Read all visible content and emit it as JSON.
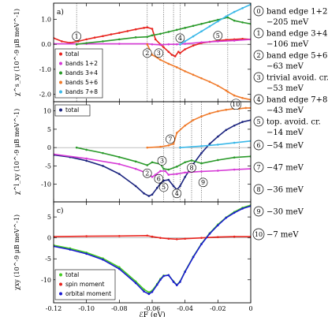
{
  "figure": {
    "xlabel": "ℰF (eV)",
    "x_tick_labels": [
      "-0.12",
      "-0.10",
      "-0.08",
      "-0.06",
      "-0.04",
      "-0.02",
      "0"
    ]
  },
  "chart_data": [
    {
      "panel": "a)",
      "type": "line",
      "ylabel": "χ^s_xy (10^-9 μB meV^-1)",
      "xlim": [
        -0.12,
        0.0
      ],
      "ylim": [
        -2.3,
        1.65
      ],
      "y_ticks": [
        "1.0",
        "0.0",
        "-1.0",
        "-2.0"
      ],
      "y_tick_values": [
        1.0,
        0.0,
        -1.0,
        -2.0
      ],
      "legend_position": "lower-left",
      "series": [
        {
          "name": "total",
          "color": "#e8231d",
          "x": [
            -0.12,
            -0.115,
            -0.11,
            -0.105,
            -0.1,
            -0.095,
            -0.09,
            -0.085,
            -0.08,
            -0.075,
            -0.07,
            -0.065,
            -0.063,
            -0.06,
            -0.058,
            -0.055,
            -0.053,
            -0.05,
            -0.048,
            -0.046,
            -0.044,
            -0.043,
            -0.04,
            -0.035,
            -0.03,
            -0.025,
            -0.02,
            -0.015,
            -0.01,
            -0.005,
            0.0
          ],
          "y": [
            0.25,
            0.12,
            0.06,
            0.12,
            0.2,
            0.27,
            0.33,
            0.4,
            0.46,
            0.53,
            0.6,
            0.66,
            0.68,
            0.62,
            0.2,
            0.0,
            -0.12,
            -0.3,
            -0.42,
            -0.48,
            -0.3,
            -0.35,
            -0.2,
            -0.05,
            0.05,
            0.1,
            0.15,
            0.18,
            0.2,
            0.22,
            0.2
          ]
        },
        {
          "name": "bands 1+2",
          "color": "#d63ad6",
          "x": [
            -0.12,
            -0.1,
            -0.08,
            -0.063,
            -0.06,
            -0.055,
            -0.05,
            -0.045,
            -0.04,
            -0.03,
            -0.02,
            -0.01,
            0.0
          ],
          "y": [
            0.02,
            0.02,
            0.02,
            0.02,
            0.0,
            -0.02,
            0.0,
            0.0,
            0.02,
            0.08,
            0.12,
            0.15,
            0.2
          ]
        },
        {
          "name": "bands 3+4",
          "color": "#2a9a2a",
          "x": [
            -0.106,
            -0.1,
            -0.09,
            -0.08,
            -0.07,
            -0.063,
            -0.06,
            -0.055,
            -0.05,
            -0.045,
            -0.04,
            -0.035,
            -0.03,
            -0.025,
            -0.02,
            -0.014,
            -0.01,
            -0.005,
            0.0
          ],
          "y": [
            0.0,
            0.05,
            0.12,
            0.2,
            0.28,
            0.3,
            0.36,
            0.42,
            0.5,
            0.58,
            0.66,
            0.74,
            0.82,
            0.9,
            0.98,
            1.08,
            0.95,
            0.88,
            0.82
          ]
        },
        {
          "name": "bands 5+6",
          "color": "#f07a2a",
          "x": [
            -0.063,
            -0.06,
            -0.055,
            -0.05,
            -0.045,
            -0.04,
            -0.035,
            -0.03,
            -0.025,
            -0.02,
            -0.015,
            -0.014,
            -0.01,
            -0.005,
            0.0
          ],
          "y": [
            0.0,
            -0.42,
            -0.62,
            -0.78,
            -0.92,
            -1.08,
            -1.22,
            -1.36,
            -1.5,
            -1.66,
            -1.85,
            -1.9,
            -2.05,
            -2.15,
            -2.22
          ]
        },
        {
          "name": "bands 7+8",
          "color": "#3ab8e8",
          "x": [
            -0.043,
            -0.04,
            -0.035,
            -0.03,
            -0.025,
            -0.02,
            -0.015,
            -0.01,
            -0.005,
            0.0
          ],
          "y": [
            0.0,
            0.12,
            0.32,
            0.52,
            0.72,
            0.92,
            1.12,
            1.3,
            1.45,
            1.6
          ]
        }
      ],
      "vlines": [
        -0.106,
        -0.063,
        -0.053,
        -0.047,
        -0.043,
        -0.014
      ],
      "markers": [
        {
          "label": "1",
          "x": -0.106,
          "y": 0.32
        },
        {
          "label": "2",
          "x": -0.063,
          "y": -0.35
        },
        {
          "label": "3",
          "x": -0.056,
          "y": -0.35
        },
        {
          "label": "4",
          "x": -0.043,
          "y": 0.25
        },
        {
          "label": "5",
          "x": -0.02,
          "y": 0.35
        }
      ]
    },
    {
      "panel": "b)",
      "type": "line",
      "ylabel": "χ^l_xy (10^-9 μB meV^-1)",
      "xlim": [
        -0.12,
        0.0
      ],
      "ylim": [
        -14.8,
        12.5
      ],
      "y_ticks": [
        "10",
        "5",
        "0",
        "-5",
        "-10"
      ],
      "y_tick_values": [
        10,
        5,
        0,
        -5,
        -10
      ],
      "legend_position": "top-left",
      "series": [
        {
          "name": "total",
          "color": "#1a237e",
          "x": [
            -0.12,
            -0.11,
            -0.1,
            -0.09,
            -0.08,
            -0.07,
            -0.065,
            -0.062,
            -0.06,
            -0.057,
            -0.055,
            -0.053,
            -0.05,
            -0.047,
            -0.045,
            -0.043,
            -0.04,
            -0.035,
            -0.03,
            -0.025,
            -0.02,
            -0.015,
            -0.01,
            -0.005,
            0.0
          ],
          "y": [
            -2.0,
            -2.6,
            -3.6,
            -5.0,
            -7.2,
            -10.5,
            -12.5,
            -13.2,
            -12.8,
            -11.0,
            -9.8,
            -9.0,
            -8.8,
            -10.5,
            -11.5,
            -10.5,
            -8.0,
            -4.5,
            -1.5,
            1.0,
            3.0,
            4.8,
            6.0,
            7.0,
            7.5
          ]
        },
        {
          "name": "bands 1+2",
          "color": "#d63ad6",
          "x": [
            -0.12,
            -0.1,
            -0.08,
            -0.07,
            -0.063,
            -0.06,
            -0.058,
            -0.055,
            -0.052,
            -0.05,
            -0.045,
            -0.04,
            -0.03,
            -0.02,
            -0.01,
            0.0
          ],
          "y": [
            -1.8,
            -3.0,
            -4.5,
            -5.8,
            -7.0,
            -8.0,
            -7.4,
            -6.4,
            -6.4,
            -7.4,
            -7.2,
            -6.8,
            -6.5,
            -6.3,
            -6.0,
            -5.8
          ]
        },
        {
          "name": "bands 3+4",
          "color": "#2a9a2a",
          "x": [
            -0.106,
            -0.1,
            -0.09,
            -0.08,
            -0.07,
            -0.063,
            -0.06,
            -0.055,
            -0.053,
            -0.05,
            -0.045,
            -0.04,
            -0.036,
            -0.03,
            -0.02,
            -0.01,
            0.0
          ],
          "y": [
            0.0,
            -0.6,
            -1.5,
            -2.6,
            -3.8,
            -4.8,
            -4.0,
            -4.5,
            -5.8,
            -6.0,
            -5.2,
            -4.0,
            -3.5,
            -4.3,
            -3.4,
            -2.7,
            -2.4
          ]
        },
        {
          "name": "bands 5+6",
          "color": "#f07a2a",
          "x": [
            -0.063,
            -0.055,
            -0.05,
            -0.047,
            -0.045,
            -0.04,
            -0.035,
            -0.03,
            -0.025,
            -0.02,
            -0.015,
            -0.01,
            -0.007,
            -0.003,
            0.0
          ],
          "y": [
            0.0,
            0.2,
            0.6,
            1.0,
            4.0,
            6.0,
            7.5,
            8.5,
            9.3,
            9.9,
            10.3,
            10.6,
            10.6,
            10.8,
            10.8
          ]
        },
        {
          "name": "bands 7+8",
          "color": "#3ab8e8",
          "x": [
            -0.043,
            -0.03,
            -0.02,
            -0.01,
            0.0
          ],
          "y": [
            0.0,
            0.4,
            0.8,
            1.3,
            1.8
          ]
        }
      ],
      "vlines": [
        -0.053,
        -0.047,
        -0.043,
        -0.036,
        -0.03,
        -0.007
      ],
      "markers": [
        {
          "label": "2",
          "x": -0.063,
          "y": -7.0
        },
        {
          "label": "3",
          "x": -0.054,
          "y": -3.6
        },
        {
          "label": "4",
          "x": -0.045,
          "y": -12.5
        },
        {
          "label": "5",
          "x": -0.053,
          "y": -10.8
        },
        {
          "label": "6",
          "x": -0.056,
          "y": -8.5
        },
        {
          "label": "7",
          "x": -0.049,
          "y": 2.3
        },
        {
          "label": "8",
          "x": -0.036,
          "y": -5.5
        },
        {
          "label": "9",
          "x": -0.029,
          "y": -9.5
        },
        {
          "label": "10",
          "x": -0.009,
          "y": 11.8
        }
      ]
    },
    {
      "panel": "c)",
      "type": "line",
      "ylabel": "χxy (10^-9 μB meV^-1)",
      "xlim": [
        -0.12,
        0.0
      ],
      "ylim": [
        -15.5,
        8.6
      ],
      "y_ticks": [
        "5",
        "0",
        "-5",
        "-10"
      ],
      "y_tick_values": [
        5,
        0,
        -5,
        -10
      ],
      "legend_position": "lower-left",
      "series": [
        {
          "name": "total",
          "color": "#44cc22",
          "x": [
            -0.12,
            -0.11,
            -0.1,
            -0.09,
            -0.08,
            -0.07,
            -0.065,
            -0.062,
            -0.06,
            -0.057,
            -0.055,
            -0.053,
            -0.05,
            -0.047,
            -0.045,
            -0.043,
            -0.04,
            -0.035,
            -0.03,
            -0.025,
            -0.02,
            -0.015,
            -0.01,
            -0.005,
            0.0
          ],
          "y": [
            -1.75,
            -2.5,
            -3.5,
            -4.9,
            -7.0,
            -10.4,
            -12.3,
            -13.0,
            -12.6,
            -11.0,
            -9.8,
            -9.0,
            -8.9,
            -10.4,
            -11.2,
            -10.4,
            -8.0,
            -4.5,
            -1.4,
            1.1,
            3.2,
            4.9,
            6.2,
            7.2,
            7.8
          ]
        },
        {
          "name": "spin moment",
          "color": "#e8231d",
          "x": [
            -0.12,
            -0.1,
            -0.08,
            -0.063,
            -0.06,
            -0.055,
            -0.05,
            -0.045,
            -0.04,
            -0.03,
            -0.02,
            -0.01,
            0.0
          ],
          "y": [
            0.3,
            0.4,
            0.45,
            0.55,
            0.3,
            0.0,
            -0.2,
            -0.3,
            -0.2,
            0.0,
            0.2,
            0.3,
            0.3
          ]
        },
        {
          "name": "orbital moment",
          "color": "#1a1ad0",
          "x": [
            -0.12,
            -0.11,
            -0.1,
            -0.09,
            -0.08,
            -0.07,
            -0.065,
            -0.062,
            -0.06,
            -0.057,
            -0.055,
            -0.053,
            -0.05,
            -0.047,
            -0.045,
            -0.043,
            -0.04,
            -0.035,
            -0.03,
            -0.025,
            -0.02,
            -0.015,
            -0.01,
            -0.005,
            0.0
          ],
          "y": [
            -2.0,
            -2.8,
            -3.8,
            -5.2,
            -7.4,
            -10.8,
            -12.8,
            -13.4,
            -12.9,
            -11.2,
            -10.0,
            -9.1,
            -8.9,
            -10.5,
            -11.3,
            -10.5,
            -8.1,
            -4.6,
            -1.5,
            1.0,
            3.0,
            4.8,
            6.0,
            7.0,
            7.6
          ]
        }
      ],
      "vlines": [],
      "markers": []
    }
  ],
  "side_labels": [
    {
      "num": "0",
      "line1": "band edge 1+2",
      "line2": "−205 meV"
    },
    {
      "num": "1",
      "line1": "band edge 3+4",
      "line2": "−106 meV"
    },
    {
      "num": "2",
      "line1": "band edge 5+6",
      "line2": "−63 meV"
    },
    {
      "num": "3",
      "line1": "trivial avoid. cr.",
      "line2": "−53 meV"
    },
    {
      "num": "4",
      "line1": "band edge 7+8",
      "line2": "−43 meV"
    },
    {
      "num": "5",
      "line1": "top. avoid. cr.",
      "line2": "−14 meV"
    },
    {
      "num": "6",
      "line1": "−54 meV",
      "line2": ""
    },
    {
      "num": "7",
      "line1": "−47 meV",
      "line2": ""
    },
    {
      "num": "8",
      "line1": "−36 meV",
      "line2": ""
    },
    {
      "num": "9",
      "line1": "−30 meV",
      "line2": ""
    },
    {
      "num": "10",
      "line1": "−7 meV",
      "line2": ""
    }
  ]
}
